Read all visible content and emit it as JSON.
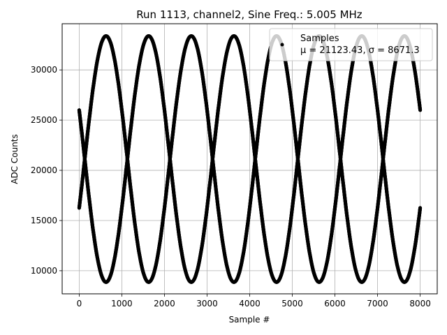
{
  "chart_data": {
    "type": "scatter",
    "title": "Run 1113, channel2, Sine Freq.: 5.005 MHz",
    "xlabel": "Sample #",
    "ylabel": "ADC Counts",
    "xlim": [
      -400,
      8400
    ],
    "ylim": [
      7700,
      34600
    ],
    "xticks": [
      0,
      1000,
      2000,
      3000,
      4000,
      5000,
      6000,
      7000,
      8000
    ],
    "yticks": [
      10000,
      15000,
      20000,
      25000,
      30000
    ],
    "grid": true,
    "legend": {
      "placement": "top-right",
      "entries": [
        {
          "label": "Samples",
          "stats": "μ = 21123.43, σ = 8671.3",
          "color": "#000000"
        }
      ]
    },
    "waveform": {
      "mean": 21123.43,
      "amplitude": 12260,
      "num_samples": 8000,
      "num_traces": 6,
      "period_samples": 2000,
      "first_peak_samples": [
        630,
        1630,
        2630,
        3630,
        4630,
        5630
      ],
      "marker_color": "#000000"
    }
  }
}
